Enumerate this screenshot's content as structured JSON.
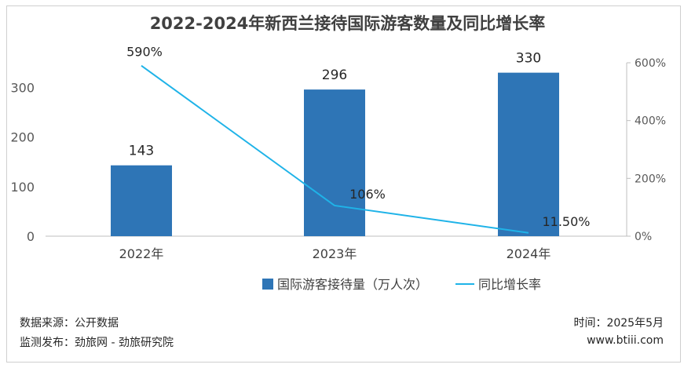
{
  "chart_data": {
    "type": "bar",
    "title": "2022-2024年新西兰接待国际游客数量及同比增长率",
    "categories": [
      "2022年",
      "2023年",
      "2024年"
    ],
    "series": [
      {
        "name": "国际游客接待量（万人次）",
        "type": "bar",
        "axis": "left",
        "values": [
          143,
          296,
          330
        ],
        "labels": [
          "143",
          "296",
          "330"
        ]
      },
      {
        "name": "同比增长率",
        "type": "line",
        "axis": "right",
        "values": [
          590,
          106,
          11.5
        ],
        "labels": [
          "590%",
          "106%",
          "11.50%"
        ]
      }
    ],
    "y_left": {
      "min": 0,
      "max": 350,
      "ticks": [
        0,
        100,
        200,
        300
      ],
      "tick_labels": [
        "0",
        "100",
        "200",
        "300"
      ]
    },
    "y_right": {
      "min": 0,
      "max": 600,
      "ticks": [
        0,
        200,
        400,
        600
      ],
      "tick_labels": [
        "0%",
        "200%",
        "400%",
        "600%"
      ]
    },
    "legend_position": "bottom",
    "grid": false,
    "colors": {
      "bar": "#2e75b6",
      "line": "#1fb3e8"
    }
  },
  "footer": {
    "source": "数据来源：公开数据",
    "publisher": "监测发布：劲旅网 - 劲旅研究院",
    "time": "时间：2025年5月",
    "site": "www.btiii.com"
  }
}
